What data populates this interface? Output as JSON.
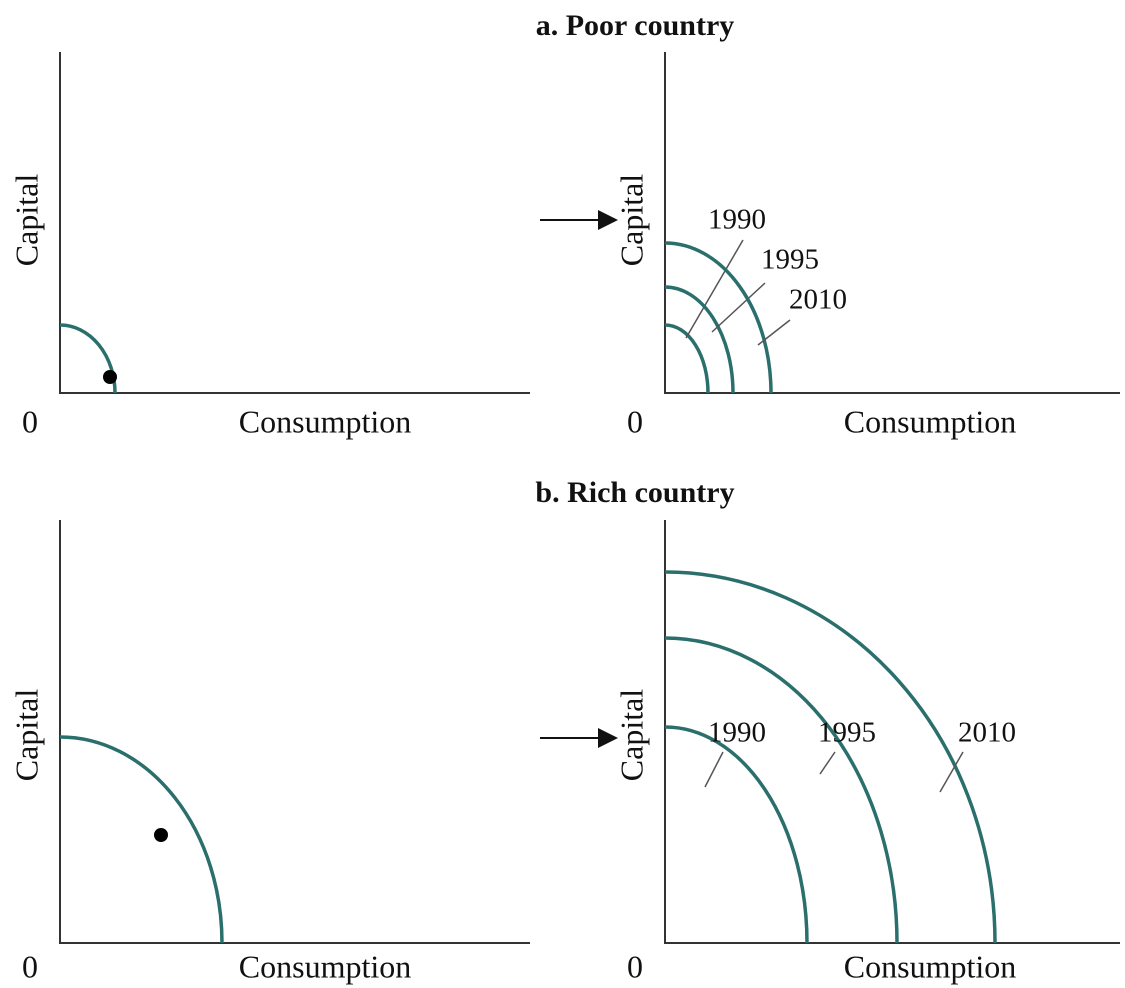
{
  "sections": [
    {
      "title": "a. Poor country",
      "left": {
        "y_label": "Capital",
        "x_label": "Consumption",
        "origin": "0"
      },
      "right": {
        "y_label": "Capital",
        "x_label": "Consumption",
        "origin": "0",
        "years": [
          "1990",
          "1995",
          "2010"
        ]
      }
    },
    {
      "title": "b. Rich country",
      "left": {
        "y_label": "Capital",
        "x_label": "Consumption",
        "origin": "0"
      },
      "right": {
        "y_label": "Capital",
        "x_label": "Consumption",
        "origin": "0",
        "years": [
          "1990",
          "1995",
          "2010"
        ]
      }
    }
  ]
}
